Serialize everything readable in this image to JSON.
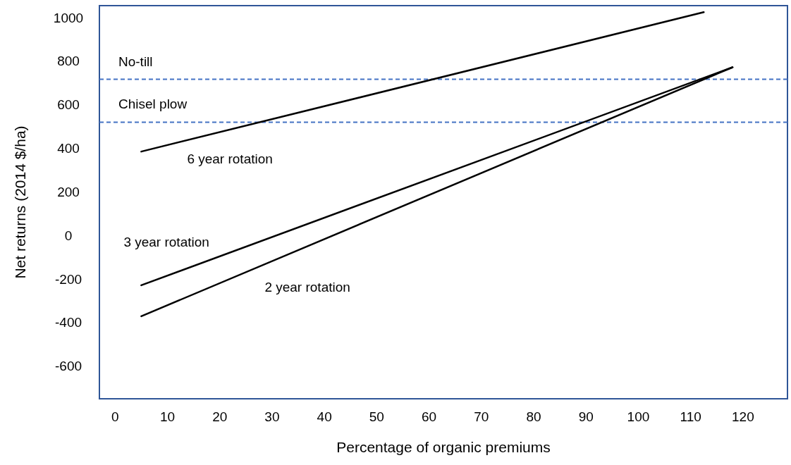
{
  "chart_data": {
    "type": "line",
    "xlabel": "Percentage of organic premiums",
    "ylabel": "Net returns (2014 $/ha)",
    "xlim": [
      -3,
      128.5
    ],
    "xticks": [
      0,
      10,
      20,
      30,
      40,
      50,
      60,
      70,
      80,
      90,
      100,
      110,
      120
    ],
    "ylim": [
      -745,
      1060
    ],
    "yticks": [
      -600,
      -400,
      -200,
      0,
      200,
      400,
      600,
      800,
      1000
    ],
    "grid": false,
    "legend": false,
    "marker": "none",
    "line_style": "solid",
    "series": [
      {
        "name": "6 year rotation",
        "color": "#000000",
        "x": [
          5,
          112.5
        ],
        "values": [
          390,
          1030
        ]
      },
      {
        "name": "3 year rotation",
        "color": "#000000",
        "x": [
          5,
          118
        ],
        "values": [
          -224,
          777
        ]
      },
      {
        "name": "2 year rotation",
        "color": "#000000",
        "x": [
          5,
          118
        ],
        "values": [
          -366,
          777
        ]
      }
    ],
    "ref_lines": [
      {
        "axis": "y",
        "value": 722,
        "label": "No-till",
        "color": "#4472c4",
        "line_style": "dashed"
      },
      {
        "axis": "y",
        "value": 525,
        "label": "Chisel plow",
        "color": "#4472c4",
        "line_style": "dashed"
      }
    ]
  }
}
